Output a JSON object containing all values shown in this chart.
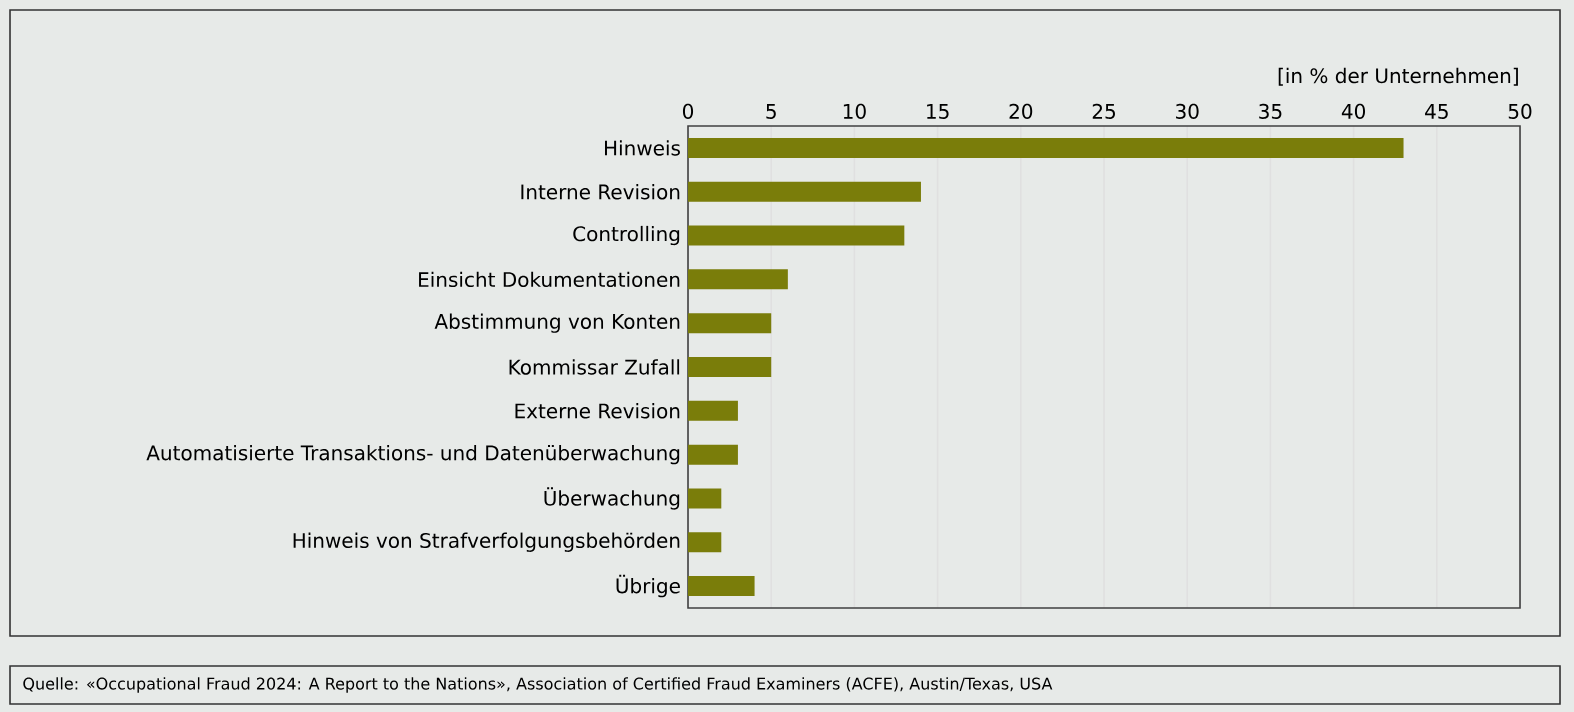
{
  "chart_data": {
    "type": "bar",
    "orientation": "horizontal",
    "xlabel": "[in % der Unternehmen]",
    "categories": [
      "Hinweis",
      "Interne Revision",
      "Controlling",
      "Einsicht Dokumentationen",
      "Abstimmung von Konten",
      "Kommissar Zufall",
      "Externe Revision",
      "Automatisierte Transaktions- und Datenüberwachung",
      "Überwachung",
      "Hinweis von Strafverfolgungsbehörden",
      "Übrige"
    ],
    "values": [
      43,
      14,
      13,
      6,
      5,
      5,
      3,
      3,
      2,
      2,
      4
    ],
    "color": "#7a7d0a",
    "xlim": [
      0,
      50
    ],
    "xticks": [
      0,
      5,
      10,
      15,
      20,
      25,
      30,
      35,
      40,
      45,
      50
    ],
    "grid": "x",
    "annotations": [
      "Quelle: «Occupational Fraud 2024: A Report to the Nations», Association of Certified Fraud Examiners (ACFE), Austin/Texas, USA"
    ]
  }
}
